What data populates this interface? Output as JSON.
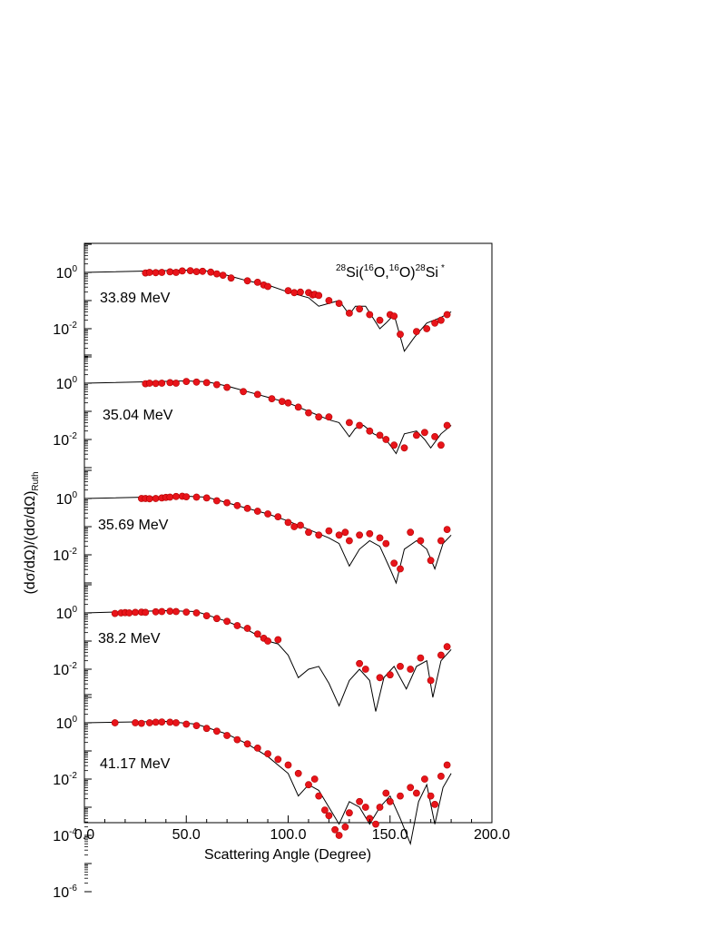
{
  "chart_data": {
    "type": "scatter",
    "title_reaction": {
      "a": "28",
      "b": "Si(",
      "c": "16",
      "d": "O,",
      "e": "16",
      "f": "O)",
      "g": "28",
      "h": "Si",
      "i": "*"
    },
    "xlabel": "Scattering Angle (Degree)",
    "ylabel": {
      "main": "(dσ/dΩ)/(dσ/dΩ)",
      "sub": "Ruth"
    },
    "x_range": [
      0,
      200
    ],
    "x_ticks": [
      "0.0",
      "50.0",
      "100.0",
      "150.0",
      "200.0"
    ],
    "y_scale": "log",
    "marker_color": "#e8141a",
    "curve_color": "#000000",
    "panels": [
      {
        "energy": "33.89 MeV",
        "ytick_labels": [
          {
            "base": "10",
            "exp": "0"
          },
          {
            "base": "10",
            "exp": "-2"
          }
        ],
        "points": [
          [
            30,
            -0.02
          ],
          [
            32,
            0.0
          ],
          [
            35,
            -0.01
          ],
          [
            38,
            0.0
          ],
          [
            42,
            0.02
          ],
          [
            45,
            0.0
          ],
          [
            48,
            0.05
          ],
          [
            52,
            0.06
          ],
          [
            55,
            0.03
          ],
          [
            58,
            0.04
          ],
          [
            62,
            0.01
          ],
          [
            65,
            -0.05
          ],
          [
            68,
            -0.1
          ],
          [
            72,
            -0.2
          ],
          [
            80,
            -0.3
          ],
          [
            85,
            -0.35
          ],
          [
            88,
            -0.45
          ],
          [
            90,
            -0.5
          ],
          [
            100,
            -0.65
          ],
          [
            103,
            -0.72
          ],
          [
            106,
            -0.7
          ],
          [
            110,
            -0.72
          ],
          [
            112,
            -0.8
          ],
          [
            113,
            -0.78
          ],
          [
            115,
            -0.82
          ],
          [
            120,
            -1.0
          ],
          [
            125,
            -1.1
          ],
          [
            130,
            -1.45
          ],
          [
            135,
            -1.3
          ],
          [
            140,
            -1.5
          ],
          [
            145,
            -1.7
          ],
          [
            150,
            -1.5
          ],
          [
            152,
            -1.55
          ],
          [
            155,
            -2.2
          ],
          [
            163,
            -2.1
          ],
          [
            168,
            -2.0
          ],
          [
            172,
            -1.8
          ],
          [
            175,
            -1.7
          ],
          [
            178,
            -1.5
          ]
        ],
        "curve": [
          [
            0,
            0
          ],
          [
            50,
            0.08
          ],
          [
            60,
            0.05
          ],
          [
            70,
            -0.1
          ],
          [
            80,
            -0.3
          ],
          [
            90,
            -0.45
          ],
          [
            100,
            -0.7
          ],
          [
            110,
            -0.9
          ],
          [
            115,
            -1.2
          ],
          [
            120,
            -1.1
          ],
          [
            125,
            -1.0
          ],
          [
            130,
            -1.5
          ],
          [
            133,
            -1.2
          ],
          [
            138,
            -1.2
          ],
          [
            145,
            -2.0
          ],
          [
            148,
            -1.8
          ],
          [
            152,
            -1.5
          ],
          [
            157,
            -2.8
          ],
          [
            162,
            -2.3
          ],
          [
            168,
            -1.8
          ],
          [
            175,
            -1.6
          ],
          [
            180,
            -1.4
          ]
        ]
      },
      {
        "energy": "35.04 MeV",
        "ytick_labels": [
          {
            "base": "10",
            "exp": "0"
          },
          {
            "base": "10",
            "exp": "-2"
          }
        ],
        "points": [
          [
            30,
            -0.02
          ],
          [
            32,
            0.0
          ],
          [
            35,
            -0.01
          ],
          [
            38,
            0.0
          ],
          [
            42,
            0.02
          ],
          [
            45,
            0.0
          ],
          [
            50,
            0.06
          ],
          [
            55,
            0.04
          ],
          [
            60,
            0.02
          ],
          [
            65,
            -0.05
          ],
          [
            70,
            -0.15
          ],
          [
            78,
            -0.3
          ],
          [
            85,
            -0.4
          ],
          [
            92,
            -0.55
          ],
          [
            97,
            -0.65
          ],
          [
            100,
            -0.7
          ],
          [
            105,
            -0.85
          ],
          [
            110,
            -1.05
          ],
          [
            115,
            -1.2
          ],
          [
            120,
            -1.2
          ],
          [
            130,
            -1.4
          ],
          [
            135,
            -1.5
          ],
          [
            140,
            -1.7
          ],
          [
            145,
            -1.85
          ],
          [
            148,
            -2.0
          ],
          [
            152,
            -2.2
          ],
          [
            157,
            -2.3
          ],
          [
            163,
            -1.85
          ],
          [
            167,
            -1.75
          ],
          [
            172,
            -1.9
          ],
          [
            175,
            -2.2
          ],
          [
            178,
            -1.5
          ]
        ],
        "curve": [
          [
            0,
            0
          ],
          [
            50,
            0.08
          ],
          [
            60,
            0.05
          ],
          [
            70,
            -0.1
          ],
          [
            80,
            -0.3
          ],
          [
            90,
            -0.5
          ],
          [
            100,
            -0.7
          ],
          [
            110,
            -1.0
          ],
          [
            120,
            -1.3
          ],
          [
            125,
            -1.4
          ],
          [
            130,
            -1.9
          ],
          [
            133,
            -1.6
          ],
          [
            137,
            -1.5
          ],
          [
            142,
            -1.8
          ],
          [
            148,
            -2.0
          ],
          [
            153,
            -2.5
          ],
          [
            157,
            -1.8
          ],
          [
            163,
            -1.7
          ],
          [
            167,
            -2.0
          ],
          [
            170,
            -2.3
          ],
          [
            175,
            -1.8
          ],
          [
            180,
            -1.5
          ]
        ]
      },
      {
        "energy": "35.69 MeV",
        "ytick_labels": [
          {
            "base": "10",
            "exp": "0"
          },
          {
            "base": "10",
            "exp": "-2"
          }
        ],
        "points": [
          [
            28,
            0.0
          ],
          [
            30,
            0.0
          ],
          [
            32,
            -0.01
          ],
          [
            35,
            0.0
          ],
          [
            38,
            0.02
          ],
          [
            40,
            0.04
          ],
          [
            42,
            0.05
          ],
          [
            45,
            0.07
          ],
          [
            48,
            0.08
          ],
          [
            50,
            0.06
          ],
          [
            55,
            0.05
          ],
          [
            60,
            0.02
          ],
          [
            65,
            -0.08
          ],
          [
            70,
            -0.15
          ],
          [
            75,
            -0.25
          ],
          [
            80,
            -0.35
          ],
          [
            85,
            -0.45
          ],
          [
            90,
            -0.55
          ],
          [
            95,
            -0.65
          ],
          [
            100,
            -0.85
          ],
          [
            103,
            -1.0
          ],
          [
            106,
            -0.95
          ],
          [
            110,
            -1.2
          ],
          [
            115,
            -1.3
          ],
          [
            120,
            -1.15
          ],
          [
            125,
            -1.3
          ],
          [
            128,
            -1.2
          ],
          [
            130,
            -1.5
          ],
          [
            135,
            -1.3
          ],
          [
            140,
            -1.25
          ],
          [
            145,
            -1.4
          ],
          [
            148,
            -1.6
          ],
          [
            152,
            -2.3
          ],
          [
            155,
            -2.5
          ],
          [
            160,
            -1.2
          ],
          [
            165,
            -1.5
          ],
          [
            170,
            -2.2
          ],
          [
            175,
            -1.5
          ],
          [
            178,
            -1.1
          ]
        ],
        "curve": [
          [
            0,
            0
          ],
          [
            50,
            0.08
          ],
          [
            60,
            0.05
          ],
          [
            70,
            -0.15
          ],
          [
            80,
            -0.35
          ],
          [
            90,
            -0.55
          ],
          [
            100,
            -0.8
          ],
          [
            110,
            -1.1
          ],
          [
            120,
            -1.4
          ],
          [
            125,
            -1.6
          ],
          [
            130,
            -2.4
          ],
          [
            135,
            -1.8
          ],
          [
            140,
            -1.5
          ],
          [
            145,
            -1.7
          ],
          [
            150,
            -2.5
          ],
          [
            153,
            -3.0
          ],
          [
            157,
            -1.8
          ],
          [
            163,
            -1.5
          ],
          [
            168,
            -1.8
          ],
          [
            172,
            -2.5
          ],
          [
            176,
            -1.6
          ],
          [
            180,
            -1.3
          ]
        ]
      },
      {
        "energy": "38.2 MeV",
        "ytick_labels": [
          {
            "base": "10",
            "exp": "0"
          },
          {
            "base": "10",
            "exp": "-2"
          }
        ],
        "points": [
          [
            15,
            -0.02
          ],
          [
            18,
            0.0
          ],
          [
            20,
            0.01
          ],
          [
            22,
            0.0
          ],
          [
            25,
            0.02
          ],
          [
            28,
            0.03
          ],
          [
            30,
            0.02
          ],
          [
            35,
            0.04
          ],
          [
            38,
            0.05
          ],
          [
            42,
            0.06
          ],
          [
            45,
            0.05
          ],
          [
            50,
            0.03
          ],
          [
            55,
            0.0
          ],
          [
            60,
            -0.1
          ],
          [
            65,
            -0.2
          ],
          [
            70,
            -0.3
          ],
          [
            75,
            -0.45
          ],
          [
            80,
            -0.55
          ],
          [
            85,
            -0.75
          ],
          [
            88,
            -0.9
          ],
          [
            90,
            -1.0
          ],
          [
            95,
            -0.95
          ],
          [
            135,
            -1.8
          ],
          [
            138,
            -2.0
          ],
          [
            145,
            -2.3
          ],
          [
            150,
            -2.2
          ],
          [
            155,
            -1.9
          ],
          [
            160,
            -2.0
          ],
          [
            165,
            -1.6
          ],
          [
            170,
            -2.4
          ],
          [
            175,
            -1.5
          ],
          [
            178,
            -1.2
          ]
        ],
        "curve": [
          [
            0,
            0
          ],
          [
            40,
            0.08
          ],
          [
            55,
            0.05
          ],
          [
            70,
            -0.3
          ],
          [
            80,
            -0.6
          ],
          [
            90,
            -1.0
          ],
          [
            95,
            -1.1
          ],
          [
            100,
            -1.5
          ],
          [
            105,
            -2.3
          ],
          [
            110,
            -2.0
          ],
          [
            115,
            -1.9
          ],
          [
            120,
            -2.5
          ],
          [
            125,
            -3.3
          ],
          [
            130,
            -2.4
          ],
          [
            135,
            -2.0
          ],
          [
            140,
            -2.4
          ],
          [
            143,
            -3.5
          ],
          [
            147,
            -2.3
          ],
          [
            152,
            -1.9
          ],
          [
            158,
            -2.7
          ],
          [
            163,
            -1.9
          ],
          [
            168,
            -1.7
          ],
          [
            171,
            -3.0
          ],
          [
            175,
            -1.7
          ],
          [
            180,
            -1.3
          ]
        ]
      },
      {
        "energy": "41.17 MeV",
        "ytick_labels": [
          {
            "base": "10",
            "exp": "0"
          },
          {
            "base": "10",
            "exp": "-2"
          },
          {
            "base": "10",
            "exp": "-4"
          },
          {
            "base": "10",
            "exp": "-6"
          }
        ],
        "points": [
          [
            15,
            0.0
          ],
          [
            25,
            0.0
          ],
          [
            28,
            -0.02
          ],
          [
            32,
            0.0
          ],
          [
            35,
            0.02
          ],
          [
            38,
            0.03
          ],
          [
            42,
            0.02
          ],
          [
            45,
            0.0
          ],
          [
            50,
            -0.05
          ],
          [
            55,
            -0.1
          ],
          [
            60,
            -0.2
          ],
          [
            65,
            -0.3
          ],
          [
            70,
            -0.45
          ],
          [
            75,
            -0.6
          ],
          [
            80,
            -0.75
          ],
          [
            85,
            -0.9
          ],
          [
            90,
            -1.1
          ],
          [
            95,
            -1.3
          ],
          [
            100,
            -1.5
          ],
          [
            105,
            -1.8
          ],
          [
            110,
            -2.2
          ],
          [
            113,
            -2.0
          ],
          [
            115,
            -2.6
          ],
          [
            118,
            -3.1
          ],
          [
            120,
            -3.3
          ],
          [
            123,
            -3.8
          ],
          [
            125,
            -4.0
          ],
          [
            128,
            -3.7
          ],
          [
            130,
            -3.2
          ],
          [
            135,
            -2.8
          ],
          [
            138,
            -3.0
          ],
          [
            140,
            -3.4
          ],
          [
            143,
            -3.6
          ],
          [
            145,
            -3.0
          ],
          [
            148,
            -2.5
          ],
          [
            150,
            -2.8
          ],
          [
            155,
            -2.6
          ],
          [
            160,
            -2.3
          ],
          [
            163,
            -2.5
          ],
          [
            167,
            -2.0
          ],
          [
            170,
            -2.6
          ],
          [
            172,
            -2.9
          ],
          [
            175,
            -1.9
          ],
          [
            178,
            -1.5
          ]
        ],
        "curve": [
          [
            0,
            0
          ],
          [
            40,
            0.05
          ],
          [
            55,
            -0.05
          ],
          [
            70,
            -0.4
          ],
          [
            80,
            -0.75
          ],
          [
            90,
            -1.2
          ],
          [
            100,
            -1.8
          ],
          [
            105,
            -2.6
          ],
          [
            110,
            -2.2
          ],
          [
            115,
            -2.4
          ],
          [
            120,
            -3.0
          ],
          [
            125,
            -3.6
          ],
          [
            130,
            -2.8
          ],
          [
            135,
            -3.0
          ],
          [
            140,
            -3.6
          ],
          [
            145,
            -3.0
          ],
          [
            150,
            -2.6
          ],
          [
            155,
            -3.4
          ],
          [
            160,
            -4.3
          ],
          [
            164,
            -2.8
          ],
          [
            168,
            -2.2
          ],
          [
            172,
            -3.6
          ],
          [
            176,
            -2.3
          ],
          [
            180,
            -1.8
          ]
        ]
      }
    ]
  }
}
